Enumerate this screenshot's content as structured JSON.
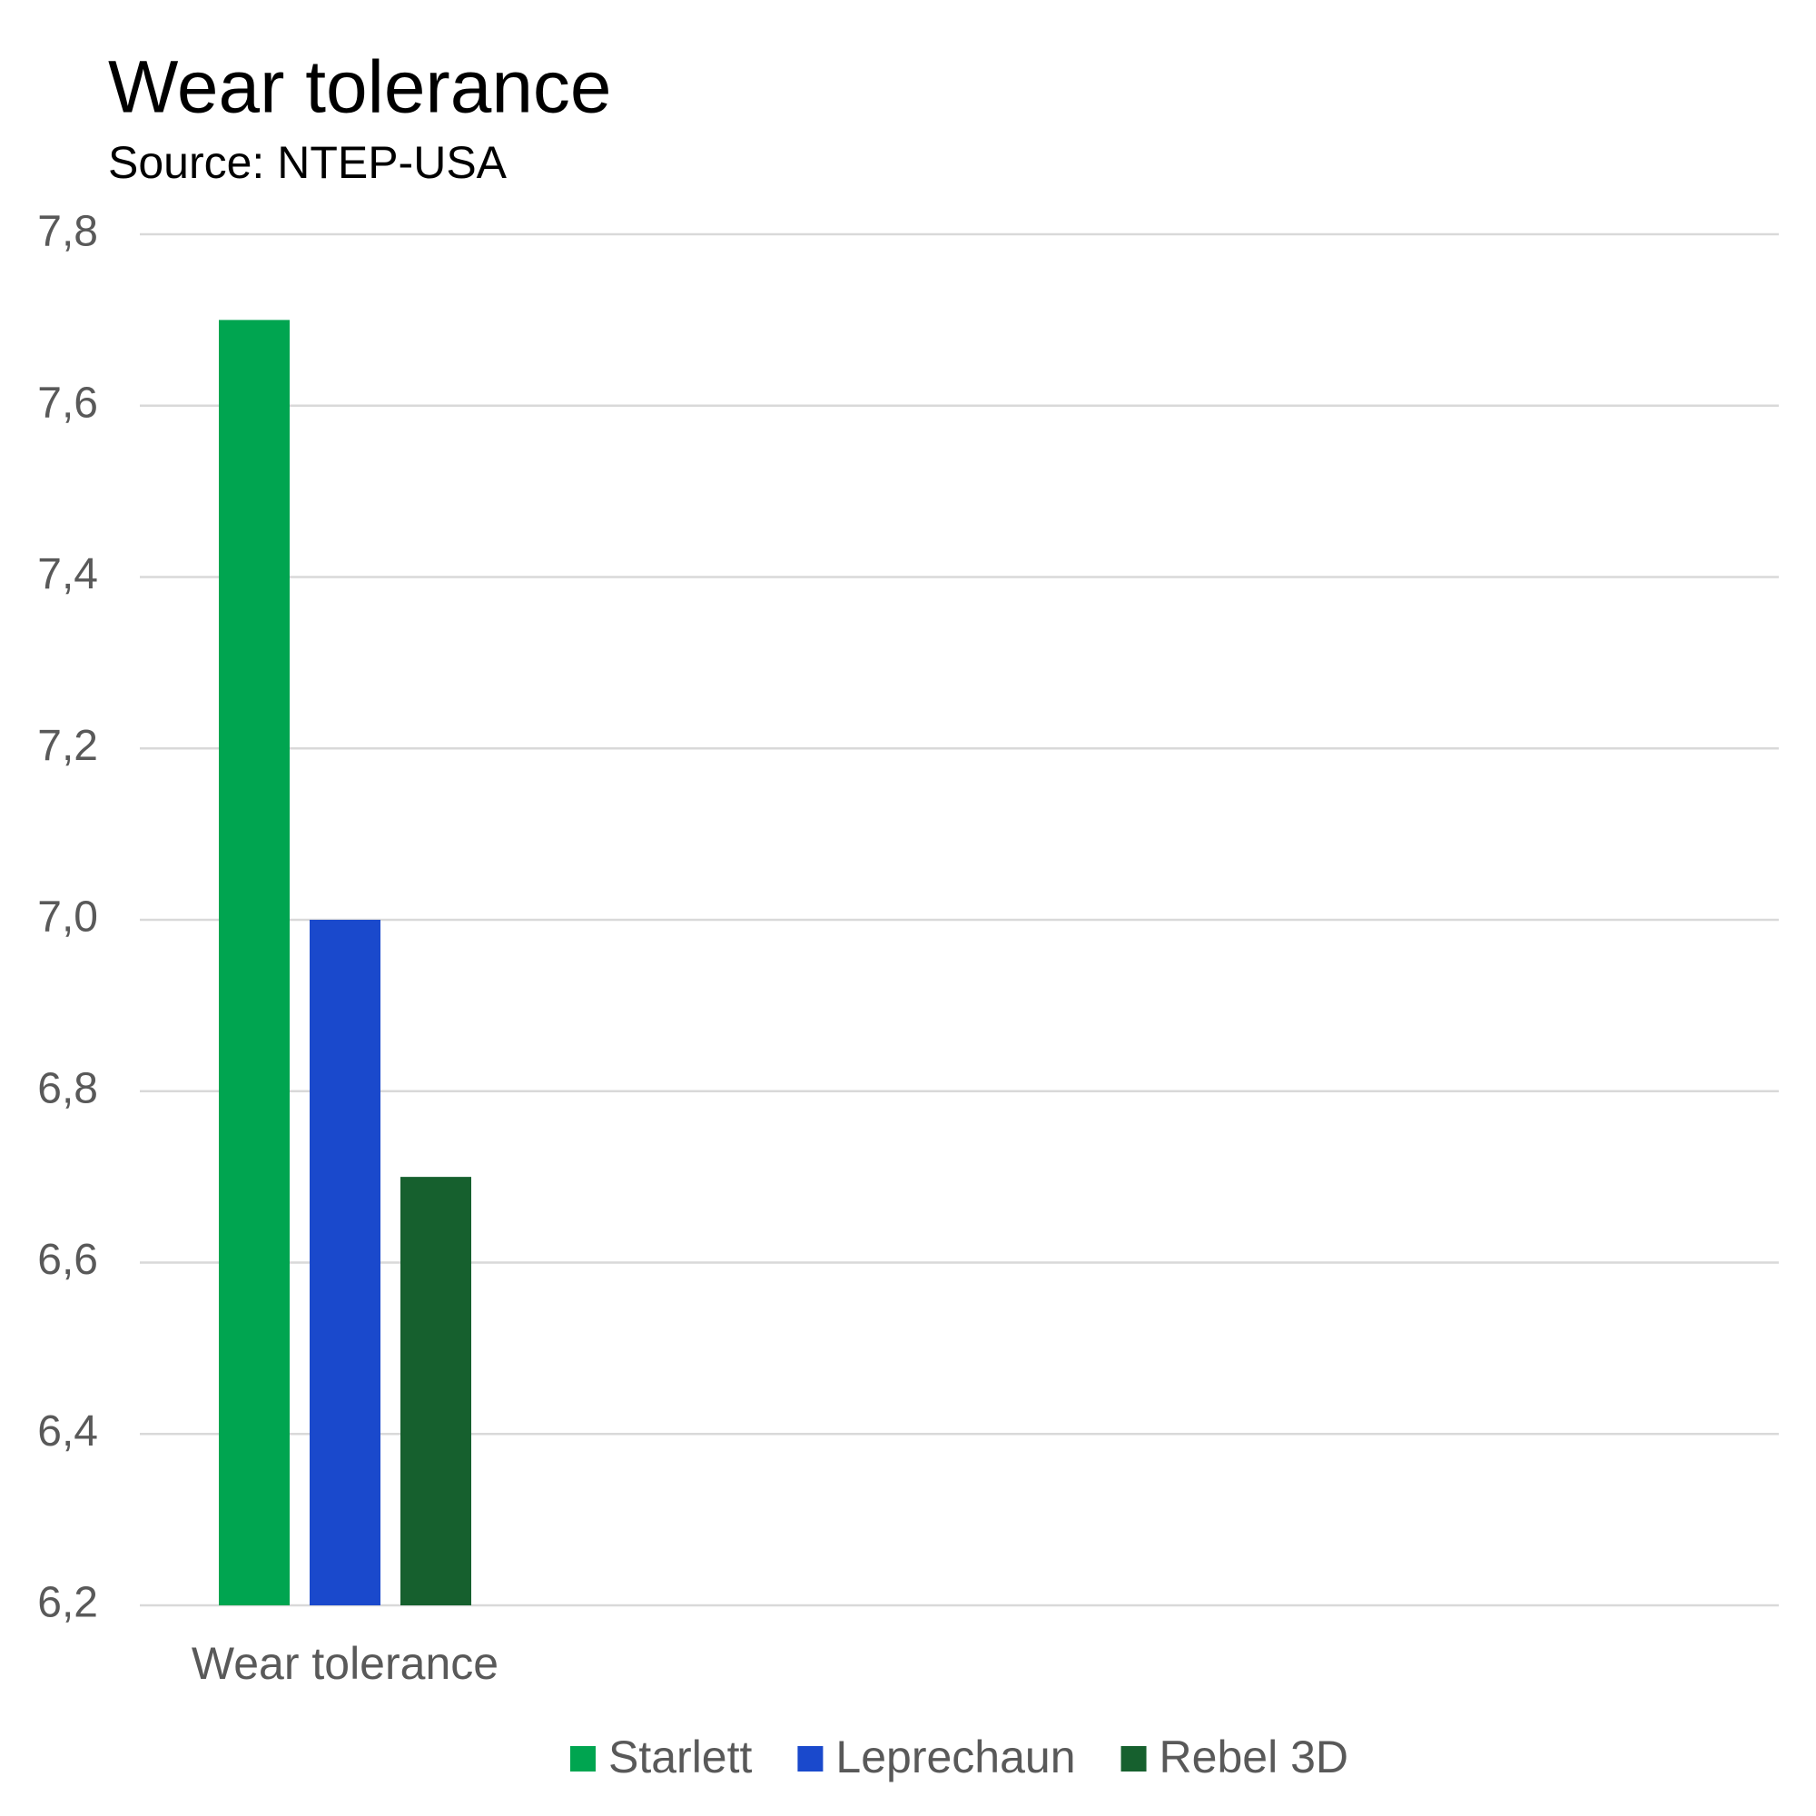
{
  "chart_data": {
    "type": "bar",
    "title": "Wear tolerance",
    "subtitle": "Source: NTEP-USA",
    "categories": [
      "Wear tolerance"
    ],
    "series": [
      {
        "name": "Starlett",
        "color": "#00a550",
        "values": [
          7.7
        ]
      },
      {
        "name": "Leprechaun",
        "color": "#1a49cc",
        "values": [
          7.0
        ]
      },
      {
        "name": "Rebel 3D",
        "color": "#16602e",
        "values": [
          6.7
        ]
      }
    ],
    "ylim": [
      6.2,
      7.8
    ],
    "yticks": [
      {
        "value": 6.2,
        "label": "6,2"
      },
      {
        "value": 6.4,
        "label": "6,4"
      },
      {
        "value": 6.6,
        "label": "6,6"
      },
      {
        "value": 6.8,
        "label": "6,8"
      },
      {
        "value": 7.0,
        "label": "7,0"
      },
      {
        "value": 7.2,
        "label": "7,2"
      },
      {
        "value": 7.4,
        "label": "7,4"
      },
      {
        "value": 7.6,
        "label": "7,6"
      },
      {
        "value": 7.8,
        "label": "7,8"
      }
    ],
    "grid": true,
    "legend": "bottom"
  }
}
